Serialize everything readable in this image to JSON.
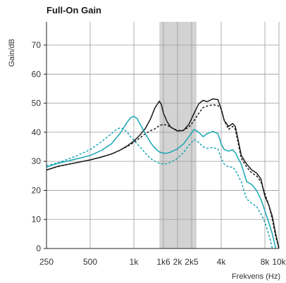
{
  "chart_data": {
    "type": "line",
    "title": "Full-On Gain",
    "xlabel": "Frekvens (Hz)",
    "ylabel": "Gain/dB",
    "x_scale": "log",
    "xlim": [
      250,
      10000
    ],
    "ylim": [
      0,
      78
    ],
    "y_ticks": [
      0,
      10,
      20,
      30,
      40,
      50,
      60,
      70
    ],
    "x_ticks": [
      {
        "value": 250,
        "label": "250"
      },
      {
        "value": 500,
        "label": "500"
      },
      {
        "value": 1000,
        "label": "1k"
      },
      {
        "value": 1600,
        "label": "1k6"
      },
      {
        "value": 2000,
        "label": "2k"
      },
      {
        "value": 2500,
        "label": "2k5"
      },
      {
        "value": 4000,
        "label": "4k"
      },
      {
        "value": 8000,
        "label": "8k"
      },
      {
        "value": 10000,
        "label": "10k"
      }
    ],
    "grid": true,
    "shaded_band": {
      "from": 1500,
      "to": 2700,
      "color": "#d3d3d3"
    },
    "series": [
      {
        "color": "#1a1a1a",
        "dash": false,
        "x": [
          250,
          300,
          400,
          500,
          600,
          700,
          800,
          900,
          1000,
          1100,
          1200,
          1300,
          1400,
          1500,
          1550,
          1600,
          1700,
          1800,
          2000,
          2200,
          2400,
          2600,
          2800,
          3000,
          3200,
          3500,
          3800,
          4000,
          4200,
          4500,
          4800,
          5000,
          5200,
          5500,
          6000,
          6500,
          7000,
          7500,
          8000,
          8500,
          9000,
          9500,
          10000
        ],
        "y": [
          27,
          28.3,
          29.5,
          30.5,
          31.5,
          32.5,
          33.8,
          35.3,
          37,
          39,
          41.3,
          44.5,
          48.5,
          50.7,
          49.5,
          46.5,
          43.5,
          41.7,
          40.4,
          40.6,
          42.8,
          46.5,
          49.8,
          51,
          50.5,
          51.5,
          51.2,
          48,
          44,
          42,
          43,
          42,
          38,
          32,
          29,
          27,
          26,
          24,
          18,
          15,
          11,
          5,
          0
        ]
      },
      {
        "color": "#1a1a1a",
        "dash": true,
        "x": [
          250,
          300,
          400,
          500,
          600,
          700,
          800,
          900,
          1000,
          1100,
          1200,
          1300,
          1400,
          1500,
          1600,
          1700,
          1800,
          2000,
          2200,
          2400,
          2600,
          2800,
          3000,
          3200,
          3500,
          3800,
          4000,
          4200,
          4500,
          4800,
          5000,
          5200,
          5500,
          6000,
          6500,
          7000,
          7500,
          8000,
          8500,
          9000,
          9500,
          10000
        ],
        "y": [
          27,
          28.2,
          29.5,
          30.5,
          31.5,
          32.5,
          33.8,
          35.1,
          36.5,
          38,
          39.5,
          40.5,
          41.2,
          42.3,
          42.7,
          42.4,
          41.7,
          40.6,
          40.7,
          41.8,
          44,
          46.5,
          48.5,
          49,
          49.5,
          49.2,
          48,
          44,
          41,
          42,
          41,
          37,
          31,
          28,
          26,
          25,
          23,
          19,
          15,
          10,
          4,
          0
        ]
      },
      {
        "color": "#18a4b4",
        "dash": false,
        "x": [
          250,
          300,
          400,
          500,
          600,
          700,
          800,
          850,
          900,
          950,
          1000,
          1050,
          1100,
          1200,
          1300,
          1400,
          1500,
          1600,
          1700,
          1800,
          2000,
          2200,
          2400,
          2600,
          2800,
          3000,
          3200,
          3500,
          3800,
          4000,
          4200,
          4500,
          4800,
          5000,
          5500,
          6000,
          6500,
          7000,
          7500,
          8000,
          8500,
          9000,
          9500
        ],
        "y": [
          28,
          29.3,
          30.8,
          32,
          33.8,
          36,
          39.5,
          41.5,
          43.5,
          45,
          45.5,
          44.8,
          43,
          39.5,
          36.5,
          34.5,
          33.2,
          32.8,
          32.8,
          33.2,
          34.3,
          36,
          38.5,
          41,
          40,
          38.5,
          39.5,
          40.3,
          39.5,
          36,
          34,
          33.5,
          34,
          33,
          29,
          23,
          22,
          20,
          17,
          13,
          9,
          5,
          0
        ]
      },
      {
        "color": "#18a4b4",
        "dash": true,
        "x": [
          250,
          300,
          400,
          500,
          600,
          700,
          750,
          800,
          850,
          900,
          950,
          1000,
          1100,
          1200,
          1300,
          1400,
          1500,
          1600,
          1700,
          1800,
          2000,
          2200,
          2400,
          2600,
          2800,
          3000,
          3200,
          3500,
          3800,
          4000,
          4200,
          4500,
          4800,
          5000,
          5500,
          6000,
          6500,
          7000,
          7500,
          8000,
          8500,
          9000
        ],
        "y": [
          28.5,
          29.5,
          31.8,
          34,
          36.8,
          39.5,
          40.8,
          41.5,
          41.2,
          40,
          38.5,
          37.2,
          35,
          32.8,
          31,
          30,
          29.3,
          29.1,
          29.2,
          29.7,
          31,
          33,
          35.5,
          37.5,
          36.5,
          35,
          34.5,
          34.8,
          34.2,
          31,
          29,
          28,
          28,
          27,
          23,
          17,
          15.5,
          14.5,
          12,
          9,
          5,
          0
        ]
      }
    ]
  }
}
